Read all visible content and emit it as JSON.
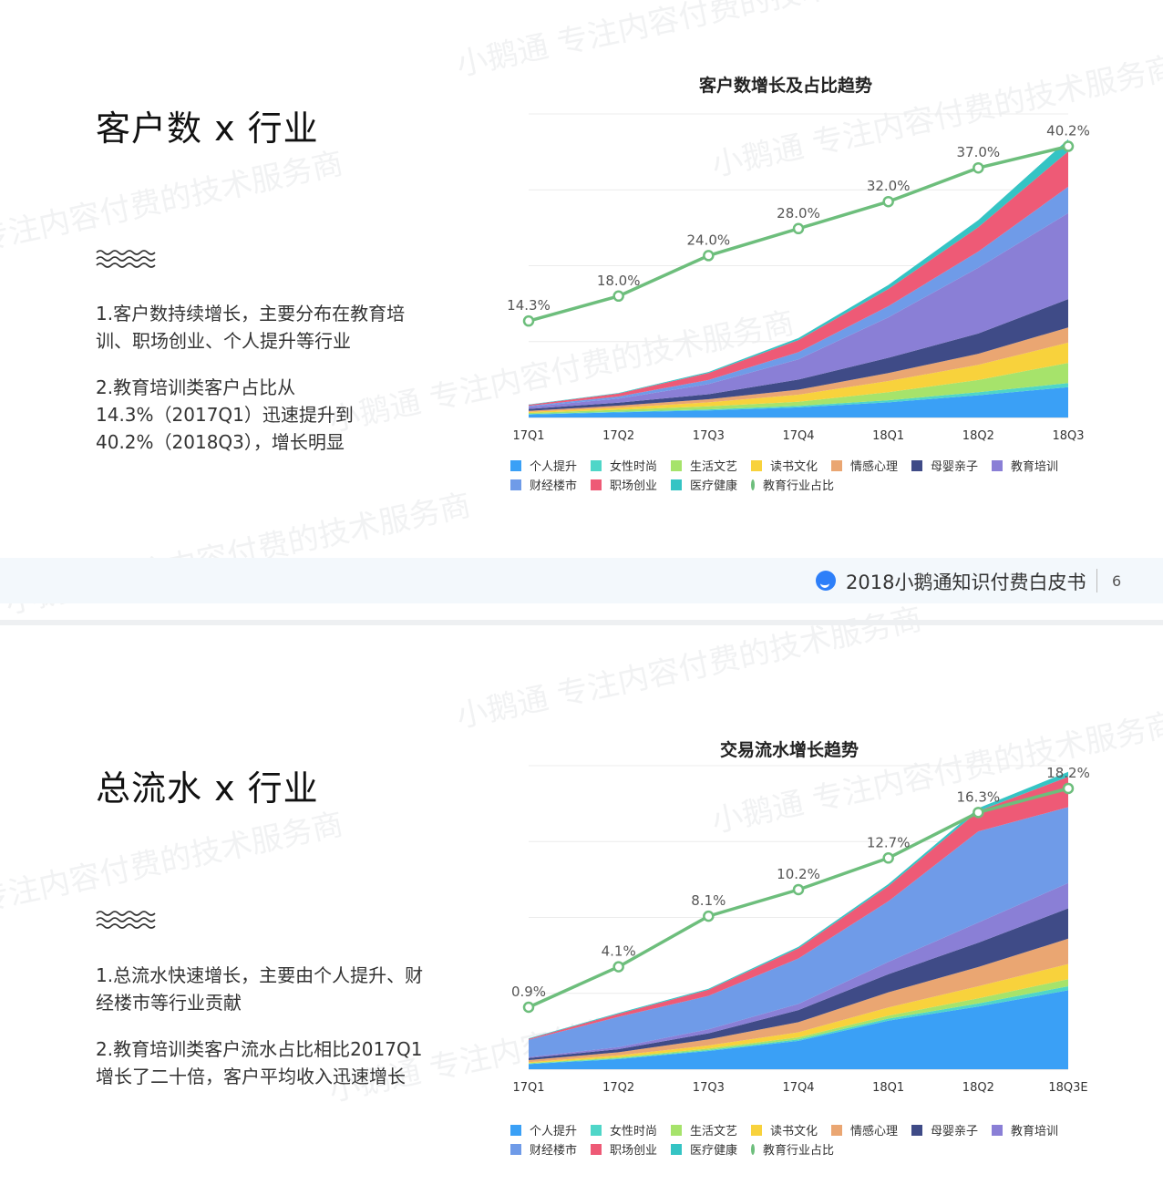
{
  "slides": [
    {
      "heading": "客户数 x 行业",
      "paragraphs": [
        "1.客户数持续增长，主要分布在教育培训、职场创业、个人提升等行业",
        "2.教育培训类客户占比从14.3%（2017Q1）迅速提升到40.2%（2018Q3），增长明显"
      ],
      "chart_title": "客户数增长及占比趋势",
      "footer": {
        "title": "2018小鹅通知识付费白皮书",
        "page": "6"
      }
    },
    {
      "heading": "总流水 x 行业",
      "paragraphs": [
        "1.总流水快速增长，主要由个人提升、财经楼市等行业贡献",
        "2.教育培训类客户流水占比相比2017Q1增长了二十倍，客户平均收入迅速增长"
      ],
      "chart_title": "交易流水增长趋势"
    }
  ],
  "watermark": "小鹅通 专注内容付费的技术服务商",
  "legend": [
    {
      "label": "个人提升",
      "color": "#3aa0f6"
    },
    {
      "label": "女性时尚",
      "color": "#4fd6c8"
    },
    {
      "label": "生活文艺",
      "color": "#a6e36b"
    },
    {
      "label": "读书文化",
      "color": "#f8d23c"
    },
    {
      "label": "情感心理",
      "color": "#eaa672"
    },
    {
      "label": "母婴亲子",
      "color": "#3f4b87"
    },
    {
      "label": "教育培训",
      "color": "#8a7fd6"
    },
    {
      "label": "财经楼市",
      "color": "#6f9be8"
    },
    {
      "label": "职场创业",
      "color": "#ee5a76"
    },
    {
      "label": "医疗健康",
      "color": "#35c4c4"
    },
    {
      "label": "教育行业占比",
      "color": "#6dbe7c",
      "line": true
    }
  ],
  "chart_data": [
    {
      "type": "area",
      "title": "客户数增长及占比趋势",
      "x": [
        "17Q1",
        "17Q2",
        "17Q3",
        "17Q4",
        "18Q1",
        "18Q2",
        "18Q3"
      ],
      "stack_order": [
        "个人提升",
        "女性时尚",
        "生活文艺",
        "读书文化",
        "情感心理",
        "母婴亲子",
        "教育培训",
        "财经楼市",
        "职场创业",
        "医疗健康"
      ],
      "series": [
        {
          "name": "个人提升",
          "values": [
            3,
            5,
            7,
            10,
            15,
            22,
            30
          ]
        },
        {
          "name": "女性时尚",
          "values": [
            0.5,
            0.7,
            1,
            1.5,
            2,
            3,
            4
          ]
        },
        {
          "name": "生活文艺",
          "values": [
            1,
            2,
            3,
            4,
            8,
            12,
            20
          ]
        },
        {
          "name": "读书文化",
          "values": [
            1,
            2,
            4,
            7,
            11,
            15,
            20
          ]
        },
        {
          "name": "情感心理",
          "values": [
            1,
            2,
            3,
            5,
            8,
            11,
            15
          ]
        },
        {
          "name": "母婴亲子",
          "values": [
            2,
            3,
            5,
            10,
            15,
            20,
            28
          ]
        },
        {
          "name": "教育培训",
          "values": [
            2,
            4,
            10,
            20,
            40,
            65,
            85
          ]
        },
        {
          "name": "财经楼市",
          "values": [
            1,
            2,
            4,
            7,
            11,
            16,
            26
          ]
        },
        {
          "name": "职场创业",
          "values": [
            1,
            3,
            7,
            12,
            17,
            24,
            35
          ]
        },
        {
          "name": "医疗健康",
          "values": [
            0.3,
            0.5,
            1,
            2,
            4,
            7,
            12
          ]
        }
      ],
      "ylim": [
        0,
        300
      ],
      "line_series": {
        "name": "教育行业占比",
        "values": [
          14.3,
          18.0,
          24.0,
          28.0,
          32.0,
          37.0,
          40.2
        ],
        "labels": [
          "14.3%",
          "18.0%",
          "24.0%",
          "28.0%",
          "32.0%",
          "37.0%",
          "40.2%"
        ],
        "ylim": [
          0,
          45
        ]
      },
      "grid": true
    },
    {
      "type": "area",
      "title": "交易流水增长趋势",
      "x": [
        "17Q1",
        "17Q2",
        "17Q3",
        "17Q4",
        "18Q1",
        "18Q2",
        "18Q3E"
      ],
      "stack_order": [
        "个人提升",
        "女性时尚",
        "生活文艺",
        "读书文化",
        "情感心理",
        "母婴亲子",
        "教育培训",
        "财经楼市",
        "职场创业",
        "医疗健康"
      ],
      "series": [
        {
          "name": "个人提升",
          "values": [
            5,
            10,
            18,
            28,
            48,
            62,
            78
          ]
        },
        {
          "name": "女性时尚",
          "values": [
            0.5,
            0.8,
            1,
            1.5,
            2,
            3,
            4
          ]
        },
        {
          "name": "生活文艺",
          "values": [
            0.5,
            1,
            1.5,
            2,
            3,
            5,
            7
          ]
        },
        {
          "name": "读书文化",
          "values": [
            1,
            2,
            3,
            5,
            8,
            12,
            15
          ]
        },
        {
          "name": "情感心理",
          "values": [
            2,
            3,
            6,
            10,
            15,
            19,
            25
          ]
        },
        {
          "name": "母婴亲子",
          "values": [
            2,
            3,
            6,
            12,
            18,
            24,
            30
          ]
        },
        {
          "name": "教育培训",
          "values": [
            1,
            2,
            4,
            6,
            12,
            20,
            25
          ]
        },
        {
          "name": "财经楼市",
          "values": [
            17,
            30,
            33,
            45,
            60,
            90,
            75
          ]
        },
        {
          "name": "职场创业",
          "values": [
            1,
            3,
            6,
            10,
            15,
            20,
            30
          ]
        },
        {
          "name": "医疗健康",
          "values": [
            0.5,
            0.8,
            1,
            1.5,
            2,
            3,
            5
          ]
        }
      ],
      "ylim": [
        0,
        300
      ],
      "line_series": {
        "name": "教育行业占比",
        "values": [
          0.9,
          4.1,
          8.1,
          10.2,
          12.7,
          16.3,
          18.2
        ],
        "labels": [
          "0.9%",
          "4.1%",
          "8.1%",
          "10.2%",
          "12.7%",
          "16.3%",
          "18.2%"
        ],
        "ylim": [
          -4,
          20
        ]
      },
      "grid": true
    }
  ]
}
